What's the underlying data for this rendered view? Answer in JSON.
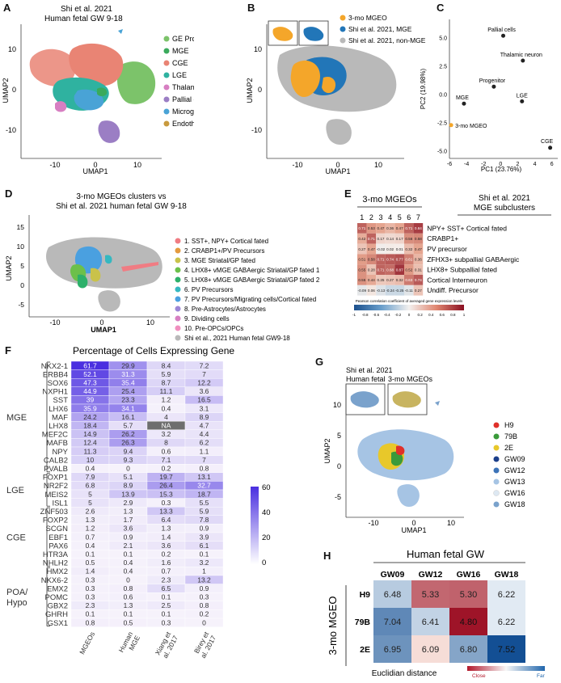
{
  "panels": {
    "A": {
      "letter": "A",
      "title": [
        "Shi et al. 2021",
        "Human fetal GW 9-18"
      ],
      "xlabel": "UMAP1",
      "ylabel": "UMAP2",
      "xticks": [
        "-10",
        "0",
        "10"
      ],
      "yticks": [
        "10",
        "0",
        "-10"
      ],
      "legend": [
        {
          "label": "GE Progenitors",
          "color": "#7cc36a"
        },
        {
          "label": "MGE",
          "color": "#3aaa5c"
        },
        {
          "label": "CGE",
          "color": "#e98474"
        },
        {
          "label": "LGE",
          "color": "#2fb2a0"
        },
        {
          "label": "Thalamic neurons",
          "color": "#d77fc2"
        },
        {
          "label": "Pallial cells",
          "color": "#9b7ec4"
        },
        {
          "label": "Microglia",
          "color": "#49a3d6"
        },
        {
          "label": "Endothelial cells",
          "color": "#c89a3e"
        }
      ]
    },
    "B": {
      "letter": "B",
      "xlabel": "UMAP1",
      "ylabel": "UMAP2",
      "xticks": [
        "-10",
        "0",
        "10"
      ],
      "yticks": [
        "10",
        "0",
        "-10"
      ],
      "legend": [
        {
          "label": "3-mo MGEO",
          "color": "#f4a62a"
        },
        {
          "label": "Shi et al. 2021, MGE",
          "color": "#2276b8"
        },
        {
          "label": "Shi et al. 2021, non-MGE",
          "color": "#b9b9b9"
        }
      ]
    },
    "C": {
      "letter": "C",
      "xlabel": "PC1 (23.76%)",
      "ylabel": "PC2 (19.98%)"
    },
    "D": {
      "letter": "D",
      "title": [
        "3-mo MGEOs clusters vs",
        "Shi et al. 2021 human fetal GW 9-18"
      ],
      "xlabel": "UMAP1",
      "ylabel": "UMAP2",
      "xticks": [
        "-10",
        "0",
        "10"
      ],
      "yticks": [
        "15",
        "10",
        "5",
        "0",
        "-5"
      ],
      "legend": [
        {
          "label": "1. SST+, NPY+ Cortical fated",
          "color": "#f07c83"
        },
        {
          "label": "2. CRABP1+/PV Precursors",
          "color": "#e49a3e"
        },
        {
          "label": "3. MGE Striatal/GP fated",
          "color": "#c9c24a"
        },
        {
          "label": "4. LHX8+ vMGE GABAergic Striatal/GP fated 1",
          "color": "#6cc04a"
        },
        {
          "label": "5. LHX8+ vMGE GABAergic Striatal/GP fated 2",
          "color": "#2db06a"
        },
        {
          "label": "6. PV Precursors",
          "color": "#35b8c0"
        },
        {
          "label": "7. PV Precursors/Migrating cells/Cortical fated",
          "color": "#4aa0e0"
        },
        {
          "label": "8. Pre-Astrocytes/Astrocytes",
          "color": "#9d86d6"
        },
        {
          "label": "9. Dividing cells",
          "color": "#d77fc2"
        },
        {
          "label": "10. Pre-OPCs/OPCs",
          "color": "#f08fbf"
        },
        {
          "label": "Shi et al., 2021 Human fetal GW9-18",
          "color": "#b9b9b9"
        }
      ]
    },
    "E": {
      "letter": "E",
      "left_header": "3-mo MGEOs",
      "right_header": [
        "Shi et al. 2021",
        "MGE subclusters"
      ],
      "colorbar_label": "Pearson correlation coefficient of averaged gene expression levels",
      "colorbar_ticks": [
        "-1",
        "-0.8",
        "-0.6",
        "-0.4",
        "-0.2",
        "0",
        "0.2",
        "0.4",
        "0.6",
        "0.8",
        "1"
      ]
    },
    "F": {
      "letter": "F",
      "title": "Percentage of Cells Expressing Gene",
      "colorbar_ticks": [
        "60",
        "40",
        "20",
        "0"
      ]
    },
    "G": {
      "letter": "G",
      "inset_labels": [
        "Shi et al. 2021",
        "Human fetal",
        "3-mo MGEOs"
      ],
      "xlabel": "UMAP1",
      "ylabel": "UMAP2",
      "xticks": [
        "-10",
        "0",
        "10"
      ],
      "yticks": [
        "10",
        "5",
        "0",
        "-5"
      ],
      "legend": [
        {
          "label": "H9",
          "color": "#e0302a"
        },
        {
          "label": "79B",
          "color": "#3a9a3a"
        },
        {
          "label": "2E",
          "color": "#e8c82a"
        },
        {
          "label": "GW09",
          "color": "#1c3f8a"
        },
        {
          "label": "GW12",
          "color": "#3c73b8"
        },
        {
          "label": "GW13",
          "color": "#a6c4e4"
        },
        {
          "label": "GW16",
          "color": "#dde8f2"
        },
        {
          "label": "GW18",
          "color": "#7aa2cc"
        }
      ]
    },
    "H": {
      "letter": "H",
      "title": "Human fetal GW",
      "ylabel": "3-mo MGEO",
      "footer": "Euclidian distance",
      "colorbar_low": "Close",
      "colorbar_high": "Far"
    }
  },
  "chart_data": [
    {
      "type": "scatter",
      "panel": "C",
      "xlabel": "PC1 (23.76%)",
      "ylabel": "PC2 (19.98%)",
      "xlim": [
        -6,
        6.5
      ],
      "ylim": [
        -5.5,
        6.5
      ],
      "xticks": [
        -6,
        -4,
        -2,
        0,
        2,
        4,
        6
      ],
      "yticks": [
        5.0,
        2.5,
        0.0,
        -2.5,
        -5.0
      ],
      "points": [
        {
          "label": "Pallial cells",
          "x": 0.3,
          "y": 5.2,
          "color": "#222222"
        },
        {
          "label": "Thalamic neuron",
          "x": 2.6,
          "y": 3.0,
          "color": "#222222"
        },
        {
          "label": "Progenitor",
          "x": -0.8,
          "y": 0.7,
          "color": "#222222"
        },
        {
          "label": "MGE",
          "x": -4.3,
          "y": -0.8,
          "color": "#222222"
        },
        {
          "label": "LGE",
          "x": 2.5,
          "y": -0.6,
          "color": "#222222"
        },
        {
          "label": "3-mo MGEO",
          "x": -5.8,
          "y": -2.7,
          "color": "#f4a62a"
        },
        {
          "label": "CGE",
          "x": 5.8,
          "y": -4.7,
          "color": "#222222"
        }
      ]
    },
    {
      "type": "heatmap",
      "panel": "E",
      "columns": [
        "1",
        "2",
        "3",
        "4",
        "5",
        "6",
        "7"
      ],
      "rows": [
        "NPY+ SST+ Cortical fated",
        "CRABP1+",
        "PV precursor",
        "ZFHX3+ subpallial GABAergic",
        "LHX8+ Subpallial fated",
        "Cortical Interneuron",
        "Undiff. Precursor"
      ],
      "values": [
        [
          0.71,
          0.53,
          0.47,
          0.36,
          0.47,
          0.71,
          0.84
        ],
        [
          0.42,
          0.71,
          0.17,
          0.14,
          0.17,
          0.56,
          0.58
        ],
        [
          0.27,
          0.47,
          -0.02,
          0.02,
          0.01,
          0.32,
          0.47
        ],
        [
          0.51,
          0.58,
          0.71,
          0.74,
          0.77,
          0.61,
          0.36
        ],
        [
          0.55,
          0.28,
          0.71,
          0.68,
          0.87,
          0.52,
          0.31
        ],
        [
          0.55,
          0.44,
          0.25,
          0.27,
          0.32,
          0.63,
          0.74
        ],
        [
          -0.09,
          0.06,
          -0.13,
          -0.24,
          -0.25,
          -0.11,
          0.27
        ]
      ],
      "zlim": [
        -1,
        1
      ]
    },
    {
      "type": "heatmap",
      "panel": "F",
      "title": "Percentage of Cells Expressing Gene",
      "columns": [
        "MGEOs",
        "Human MGE",
        "Xiang et al. 2017",
        "Birey et al. 2017"
      ],
      "groups": [
        {
          "name": "MGE",
          "genes": [
            "NKX2-1",
            "ERBB4",
            "SOX6",
            "NXPH1",
            "SST",
            "LHX6",
            "MAF",
            "LHX8",
            "MEF2C",
            "MAFB",
            "NPY",
            "CALB2",
            "PVALB"
          ]
        },
        {
          "name": "LGE",
          "genes": [
            "FOXP1",
            "NR2F2",
            "MEIS2",
            "ISL1"
          ]
        },
        {
          "name": "CGE",
          "genes": [
            "ZNF503",
            "FOXP2",
            "SCGN",
            "EBF1",
            "PAX6",
            "HTR3A",
            "NHLH2"
          ]
        },
        {
          "name": "POA/ Hypo",
          "genes": [
            "HMX2",
            "NKX6-2",
            "EMX2",
            "POMC",
            "GBX2",
            "GHRH",
            "GSX1"
          ]
        }
      ],
      "values": [
        [
          "61.7",
          "29.9",
          "8.4",
          "7.2"
        ],
        [
          "52.1",
          "31.3",
          "5.9",
          "7"
        ],
        [
          "47.3",
          "35.4",
          "8.7",
          "12.2"
        ],
        [
          "44.9",
          "25.4",
          "11.1",
          "3.6"
        ],
        [
          "39",
          "23.3",
          "1.2",
          "16.5"
        ],
        [
          "35.9",
          "34.1",
          "0.4",
          "3.1"
        ],
        [
          "24.2",
          "16.1",
          "4",
          "8.9"
        ],
        [
          "18.4",
          "5.7",
          "NA",
          "4.7"
        ],
        [
          "14.9",
          "26.2",
          "3.2",
          "4.4"
        ],
        [
          "12.4",
          "26.3",
          "8",
          "6.2"
        ],
        [
          "11.3",
          "9.4",
          "0.6",
          "1.1"
        ],
        [
          "10",
          "9.3",
          "7.1",
          "7"
        ],
        [
          "0.4",
          "0",
          "0.2",
          "0.8"
        ],
        [
          "7.9",
          "5.1",
          "19.7",
          "13.1"
        ],
        [
          "6.8",
          "8.9",
          "26.4",
          "32.7"
        ],
        [
          "5",
          "13.9",
          "15.3",
          "18.7"
        ],
        [
          "5",
          "2.9",
          "0.3",
          "5.5"
        ],
        [
          "2.6",
          "1.3",
          "13.3",
          "5.9"
        ],
        [
          "1.3",
          "1.7",
          "6.4",
          "7.8"
        ],
        [
          "1.2",
          "3.6",
          "1.3",
          "0.9"
        ],
        [
          "0.7",
          "0.9",
          "1.4",
          "3.9"
        ],
        [
          "0.4",
          "2.1",
          "3.6",
          "6.1"
        ],
        [
          "0.1",
          "0.1",
          "0.2",
          "0.1"
        ],
        [
          "0.5",
          "0.4",
          "1.6",
          "3.2"
        ],
        [
          "1.4",
          "0.4",
          "0.7",
          "1"
        ],
        [
          "0.3",
          "0",
          "2.3",
          "13.2"
        ],
        [
          "0.3",
          "0.8",
          "6.5",
          "0.9"
        ],
        [
          "0.3",
          "0.6",
          "0.1",
          "0.3"
        ],
        [
          "2.3",
          "1.3",
          "2.5",
          "0.8"
        ],
        [
          "0.1",
          "0.1",
          "0.1",
          "0.2"
        ],
        [
          "0.8",
          "0.5",
          "0.3",
          "0"
        ]
      ],
      "zlim": [
        0,
        60
      ]
    },
    {
      "type": "heatmap",
      "panel": "H",
      "title": "Human fetal GW",
      "columns": [
        "GW09",
        "GW12",
        "GW16",
        "GW18"
      ],
      "rows": [
        "H9",
        "79B",
        "2E"
      ],
      "values": [
        [
          6.48,
          5.33,
          5.3,
          6.22
        ],
        [
          7.04,
          6.41,
          4.8,
          6.22
        ],
        [
          6.95,
          6.09,
          6.8,
          7.52
        ]
      ],
      "colorbar": [
        "Close",
        "Far"
      ]
    }
  ]
}
